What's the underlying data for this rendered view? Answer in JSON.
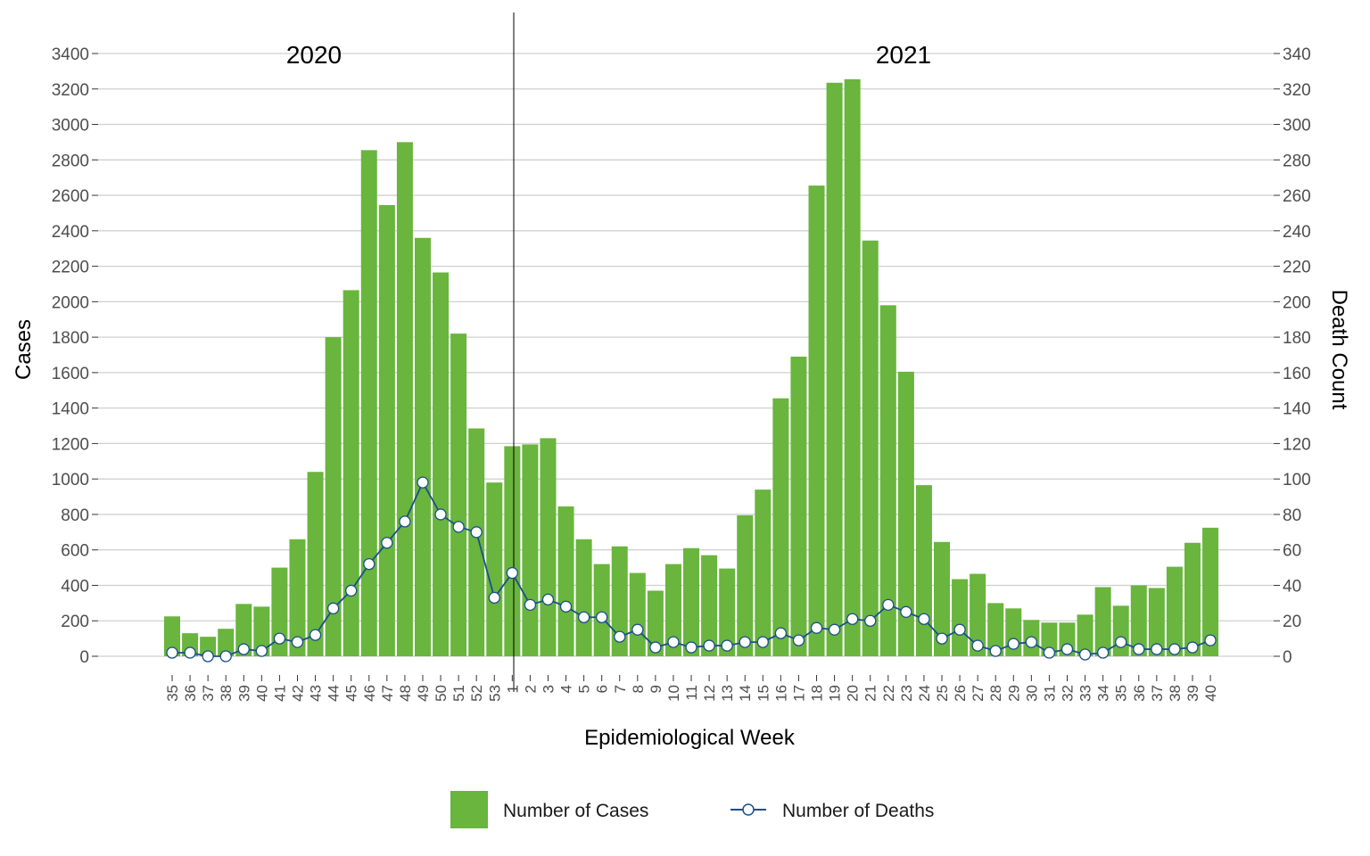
{
  "chart_data": {
    "type": "bar",
    "ylabel": "Cases",
    "y2label": "Death Count",
    "xlabel": "Epidemiological Week",
    "ylim": [
      0,
      3400
    ],
    "y2lim": [
      0,
      340
    ],
    "yticks": [
      0,
      200,
      400,
      600,
      800,
      1000,
      1200,
      1400,
      1600,
      1800,
      2000,
      2200,
      2400,
      2600,
      2800,
      3000,
      3200,
      3400
    ],
    "y2ticks": [
      0,
      20,
      40,
      60,
      80,
      100,
      120,
      140,
      160,
      180,
      200,
      220,
      240,
      260,
      280,
      300,
      320,
      340
    ],
    "grid": "horizontal",
    "legend_position": "bottom",
    "year_labels": [
      "2020",
      "2021"
    ],
    "categories": [
      "35",
      "36",
      "37",
      "38",
      "39",
      "40",
      "41",
      "42",
      "43",
      "44",
      "45",
      "46",
      "47",
      "48",
      "49",
      "50",
      "51",
      "52",
      "53",
      "1",
      "2",
      "3",
      "4",
      "5",
      "6",
      "7",
      "8",
      "9",
      "10",
      "11",
      "12",
      "13",
      "14",
      "15",
      "16",
      "17",
      "18",
      "19",
      "20",
      "21",
      "22",
      "23",
      "24",
      "25",
      "26",
      "27",
      "28",
      "29",
      "30",
      "31",
      "32",
      "33",
      "34",
      "35",
      "36",
      "37",
      "38",
      "39",
      "40"
    ],
    "series": [
      {
        "name": "Number of Cases",
        "type": "bar",
        "axis": "left",
        "color": "#69b53d",
        "values": [
          225,
          130,
          110,
          155,
          295,
          280,
          500,
          660,
          1040,
          1800,
          2065,
          2855,
          2545,
          2900,
          2360,
          2165,
          1820,
          1285,
          980,
          1185,
          1195,
          1230,
          845,
          660,
          520,
          620,
          470,
          370,
          520,
          610,
          570,
          495,
          795,
          940,
          1455,
          1690,
          2655,
          3235,
          3255,
          2345,
          1980,
          1605,
          965,
          645,
          435,
          465,
          300,
          270,
          205,
          190,
          190,
          235,
          390,
          285,
          400,
          385,
          505,
          640,
          725
        ]
      },
      {
        "name": "Number of Deaths",
        "type": "line",
        "axis": "right",
        "color": "#1b4f8c",
        "values": [
          2,
          2,
          0,
          0,
          4,
          3,
          10,
          8,
          12,
          27,
          37,
          52,
          64,
          76,
          98,
          80,
          73,
          70,
          33,
          47,
          29,
          32,
          28,
          22,
          22,
          11,
          15,
          5,
          8,
          5,
          6,
          6,
          8,
          8,
          13,
          9,
          16,
          15,
          21,
          20,
          29,
          25,
          21,
          10,
          15,
          6,
          3,
          7,
          8,
          2,
          4,
          1,
          2,
          8,
          4,
          4,
          4,
          5,
          9
        ]
      }
    ]
  }
}
